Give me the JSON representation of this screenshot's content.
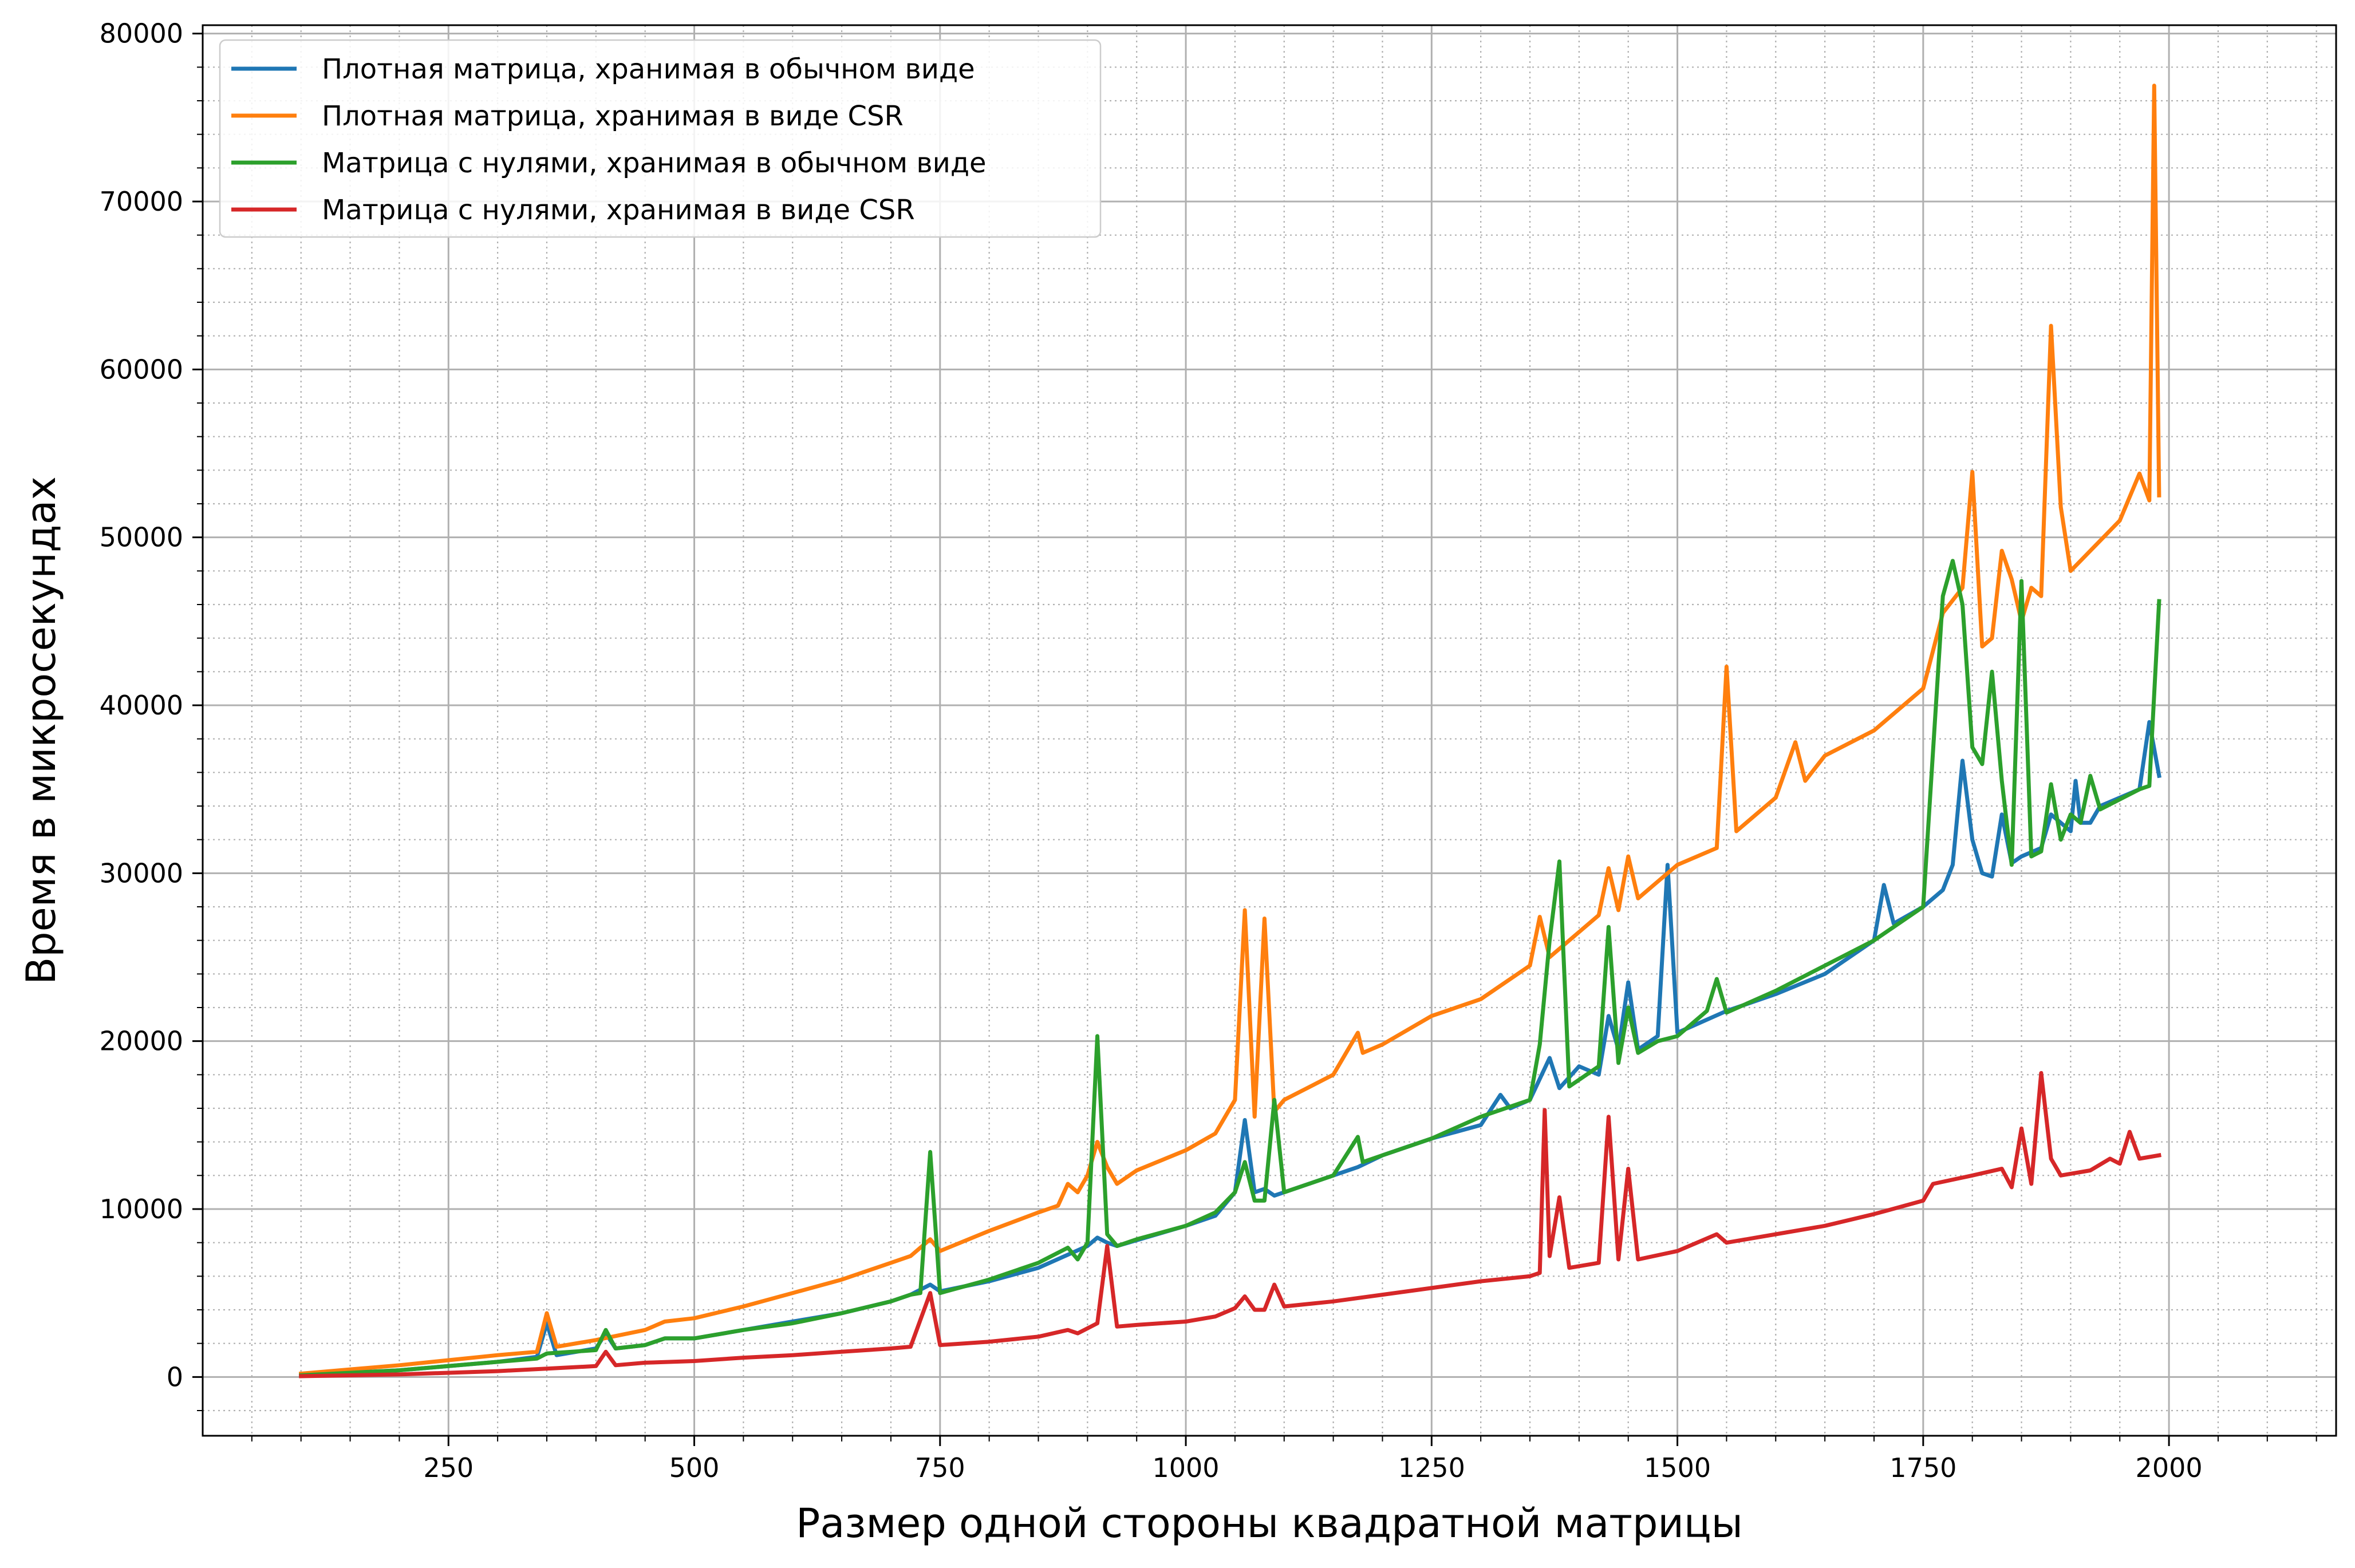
{
  "chart_data": {
    "type": "line",
    "title": "",
    "xlabel": "Размер одной стороны квадратной матрицы",
    "ylabel": "Время в микросекундах",
    "xlim": [
      0,
      2170
    ],
    "ylim": [
      -3500,
      80500
    ],
    "xticks": [
      250,
      500,
      750,
      1000,
      1250,
      1500,
      1750,
      2000
    ],
    "yticks": [
      0,
      10000,
      20000,
      30000,
      40000,
      50000,
      60000,
      70000,
      80000
    ],
    "grid": {
      "major": true,
      "minor": true
    },
    "legend_position": "top-left",
    "series": [
      {
        "name": "Плотная матрица, хранимая в обычном виде",
        "color": "#1f77b4",
        "points": [
          [
            100,
            100
          ],
          [
            200,
            400
          ],
          [
            300,
            900
          ],
          [
            340,
            1200
          ],
          [
            350,
            3200
          ],
          [
            360,
            1300
          ],
          [
            400,
            1700
          ],
          [
            410,
            2600
          ],
          [
            420,
            1700
          ],
          [
            450,
            1900
          ],
          [
            470,
            2300
          ],
          [
            500,
            2300
          ],
          [
            550,
            2800
          ],
          [
            600,
            3300
          ],
          [
            650,
            3800
          ],
          [
            700,
            4500
          ],
          [
            720,
            4900
          ],
          [
            740,
            5500
          ],
          [
            750,
            5100
          ],
          [
            800,
            5700
          ],
          [
            850,
            6500
          ],
          [
            900,
            7800
          ],
          [
            910,
            8300
          ],
          [
            920,
            8000
          ],
          [
            930,
            7800
          ],
          [
            1000,
            9000
          ],
          [
            1030,
            9600
          ],
          [
            1050,
            11000
          ],
          [
            1060,
            15300
          ],
          [
            1070,
            11000
          ],
          [
            1080,
            11200
          ],
          [
            1090,
            10800
          ],
          [
            1100,
            11000
          ],
          [
            1150,
            12000
          ],
          [
            1175,
            12500
          ],
          [
            1200,
            13200
          ],
          [
            1250,
            14200
          ],
          [
            1300,
            15000
          ],
          [
            1320,
            16800
          ],
          [
            1330,
            16000
          ],
          [
            1350,
            16500
          ],
          [
            1370,
            19000
          ],
          [
            1380,
            17200
          ],
          [
            1400,
            18500
          ],
          [
            1420,
            18000
          ],
          [
            1430,
            21500
          ],
          [
            1440,
            19500
          ],
          [
            1450,
            23500
          ],
          [
            1460,
            19500
          ],
          [
            1480,
            20300
          ],
          [
            1490,
            30500
          ],
          [
            1500,
            20500
          ],
          [
            1550,
            21800
          ],
          [
            1600,
            22800
          ],
          [
            1650,
            24000
          ],
          [
            1700,
            26000
          ],
          [
            1710,
            29300
          ],
          [
            1720,
            27000
          ],
          [
            1750,
            28000
          ],
          [
            1770,
            29000
          ],
          [
            1780,
            30500
          ],
          [
            1790,
            36700
          ],
          [
            1800,
            32000
          ],
          [
            1810,
            30000
          ],
          [
            1820,
            29800
          ],
          [
            1830,
            33500
          ],
          [
            1840,
            30600
          ],
          [
            1850,
            31000
          ],
          [
            1870,
            31500
          ],
          [
            1880,
            33500
          ],
          [
            1900,
            32500
          ],
          [
            1905,
            35500
          ],
          [
            1910,
            33000
          ],
          [
            1920,
            33000
          ],
          [
            1930,
            34000
          ],
          [
            1970,
            35000
          ],
          [
            1980,
            39000
          ],
          [
            1990,
            35800
          ]
        ]
      },
      {
        "name": "Плотная матрица, хранимая в виде CSR",
        "color": "#ff7f0e",
        "points": [
          [
            100,
            200
          ],
          [
            200,
            700
          ],
          [
            300,
            1300
          ],
          [
            340,
            1500
          ],
          [
            350,
            3800
          ],
          [
            360,
            1800
          ],
          [
            400,
            2200
          ],
          [
            450,
            2800
          ],
          [
            470,
            3300
          ],
          [
            500,
            3500
          ],
          [
            550,
            4200
          ],
          [
            600,
            5000
          ],
          [
            650,
            5800
          ],
          [
            700,
            6800
          ],
          [
            720,
            7200
          ],
          [
            740,
            8200
          ],
          [
            750,
            7500
          ],
          [
            800,
            8700
          ],
          [
            850,
            9800
          ],
          [
            870,
            10200
          ],
          [
            880,
            11500
          ],
          [
            890,
            11000
          ],
          [
            900,
            12000
          ],
          [
            910,
            14000
          ],
          [
            920,
            12500
          ],
          [
            930,
            11500
          ],
          [
            950,
            12300
          ],
          [
            1000,
            13500
          ],
          [
            1030,
            14500
          ],
          [
            1050,
            16500
          ],
          [
            1060,
            27800
          ],
          [
            1070,
            15500
          ],
          [
            1080,
            27300
          ],
          [
            1090,
            15800
          ],
          [
            1100,
            16500
          ],
          [
            1150,
            18000
          ],
          [
            1175,
            20500
          ],
          [
            1180,
            19300
          ],
          [
            1200,
            19800
          ],
          [
            1250,
            21500
          ],
          [
            1300,
            22500
          ],
          [
            1350,
            24500
          ],
          [
            1360,
            27400
          ],
          [
            1370,
            25000
          ],
          [
            1400,
            26500
          ],
          [
            1420,
            27500
          ],
          [
            1430,
            30300
          ],
          [
            1440,
            27800
          ],
          [
            1450,
            31000
          ],
          [
            1460,
            28500
          ],
          [
            1480,
            29500
          ],
          [
            1500,
            30500
          ],
          [
            1540,
            31500
          ],
          [
            1550,
            42300
          ],
          [
            1560,
            32500
          ],
          [
            1600,
            34500
          ],
          [
            1620,
            37800
          ],
          [
            1630,
            35500
          ],
          [
            1650,
            37000
          ],
          [
            1700,
            38500
          ],
          [
            1750,
            41000
          ],
          [
            1770,
            45500
          ],
          [
            1790,
            47000
          ],
          [
            1800,
            53900
          ],
          [
            1810,
            43500
          ],
          [
            1820,
            44000
          ],
          [
            1830,
            49200
          ],
          [
            1840,
            47500
          ],
          [
            1850,
            45000
          ],
          [
            1860,
            47000
          ],
          [
            1870,
            46500
          ],
          [
            1880,
            62600
          ],
          [
            1890,
            51800
          ],
          [
            1900,
            48000
          ],
          [
            1950,
            51000
          ],
          [
            1970,
            53800
          ],
          [
            1980,
            52200
          ],
          [
            1985,
            76900
          ],
          [
            1990,
            52500
          ]
        ]
      },
      {
        "name": "Матрица с нулями, хранимая в обычном виде",
        "color": "#2ca02c",
        "points": [
          [
            100,
            100
          ],
          [
            200,
            400
          ],
          [
            300,
            900
          ],
          [
            340,
            1100
          ],
          [
            350,
            1400
          ],
          [
            400,
            1600
          ],
          [
            410,
            2800
          ],
          [
            420,
            1700
          ],
          [
            450,
            1900
          ],
          [
            470,
            2300
          ],
          [
            500,
            2300
          ],
          [
            550,
            2800
          ],
          [
            600,
            3200
          ],
          [
            650,
            3800
          ],
          [
            700,
            4500
          ],
          [
            720,
            4900
          ],
          [
            730,
            5000
          ],
          [
            740,
            13400
          ],
          [
            750,
            5000
          ],
          [
            800,
            5800
          ],
          [
            850,
            6800
          ],
          [
            880,
            7700
          ],
          [
            890,
            7000
          ],
          [
            900,
            8000
          ],
          [
            910,
            20300
          ],
          [
            920,
            8500
          ],
          [
            930,
            7800
          ],
          [
            950,
            8200
          ],
          [
            1000,
            9000
          ],
          [
            1030,
            9800
          ],
          [
            1050,
            11000
          ],
          [
            1060,
            12800
          ],
          [
            1070,
            10500
          ],
          [
            1080,
            10500
          ],
          [
            1090,
            16500
          ],
          [
            1100,
            11000
          ],
          [
            1150,
            12000
          ],
          [
            1175,
            14300
          ],
          [
            1180,
            12800
          ],
          [
            1200,
            13200
          ],
          [
            1250,
            14200
          ],
          [
            1300,
            15500
          ],
          [
            1350,
            16500
          ],
          [
            1360,
            19800
          ],
          [
            1370,
            26000
          ],
          [
            1380,
            30700
          ],
          [
            1390,
            17300
          ],
          [
            1420,
            18500
          ],
          [
            1430,
            26800
          ],
          [
            1440,
            18700
          ],
          [
            1450,
            22000
          ],
          [
            1460,
            19300
          ],
          [
            1480,
            20000
          ],
          [
            1500,
            20300
          ],
          [
            1530,
            21800
          ],
          [
            1540,
            23700
          ],
          [
            1550,
            21700
          ],
          [
            1600,
            23000
          ],
          [
            1650,
            24500
          ],
          [
            1700,
            26000
          ],
          [
            1750,
            28000
          ],
          [
            1770,
            46500
          ],
          [
            1780,
            48600
          ],
          [
            1790,
            46000
          ],
          [
            1800,
            37500
          ],
          [
            1810,
            36500
          ],
          [
            1820,
            42000
          ],
          [
            1830,
            35500
          ],
          [
            1840,
            30500
          ],
          [
            1850,
            47400
          ],
          [
            1860,
            31000
          ],
          [
            1870,
            31300
          ],
          [
            1880,
            35300
          ],
          [
            1890,
            32000
          ],
          [
            1900,
            33500
          ],
          [
            1910,
            33000
          ],
          [
            1920,
            35800
          ],
          [
            1930,
            33800
          ],
          [
            1970,
            35000
          ],
          [
            1980,
            35200
          ],
          [
            1990,
            46200
          ]
        ]
      },
      {
        "name": "Матрица с нулями, хранимая в виде CSR",
        "color": "#d62728",
        "points": [
          [
            100,
            50
          ],
          [
            200,
            150
          ],
          [
            300,
            350
          ],
          [
            350,
            500
          ],
          [
            400,
            650
          ],
          [
            410,
            1500
          ],
          [
            420,
            700
          ],
          [
            450,
            850
          ],
          [
            500,
            950
          ],
          [
            550,
            1150
          ],
          [
            600,
            1300
          ],
          [
            650,
            1500
          ],
          [
            700,
            1700
          ],
          [
            720,
            1800
          ],
          [
            740,
            5000
          ],
          [
            750,
            1900
          ],
          [
            800,
            2100
          ],
          [
            850,
            2400
          ],
          [
            880,
            2800
          ],
          [
            890,
            2600
          ],
          [
            910,
            3200
          ],
          [
            920,
            7800
          ],
          [
            930,
            3000
          ],
          [
            950,
            3100
          ],
          [
            1000,
            3300
          ],
          [
            1030,
            3600
          ],
          [
            1050,
            4100
          ],
          [
            1060,
            4800
          ],
          [
            1070,
            4000
          ],
          [
            1080,
            4000
          ],
          [
            1090,
            5500
          ],
          [
            1100,
            4200
          ],
          [
            1150,
            4500
          ],
          [
            1200,
            4900
          ],
          [
            1250,
            5300
          ],
          [
            1300,
            5700
          ],
          [
            1350,
            6000
          ],
          [
            1360,
            6200
          ],
          [
            1365,
            15900
          ],
          [
            1370,
            7200
          ],
          [
            1380,
            10700
          ],
          [
            1390,
            6500
          ],
          [
            1420,
            6800
          ],
          [
            1430,
            15500
          ],
          [
            1440,
            7000
          ],
          [
            1450,
            12400
          ],
          [
            1460,
            7000
          ],
          [
            1500,
            7500
          ],
          [
            1540,
            8500
          ],
          [
            1550,
            8000
          ],
          [
            1600,
            8500
          ],
          [
            1650,
            9000
          ],
          [
            1700,
            9700
          ],
          [
            1750,
            10500
          ],
          [
            1760,
            11500
          ],
          [
            1800,
            12000
          ],
          [
            1830,
            12400
          ],
          [
            1840,
            11300
          ],
          [
            1850,
            14800
          ],
          [
            1860,
            11500
          ],
          [
            1870,
            18100
          ],
          [
            1880,
            13000
          ],
          [
            1890,
            12000
          ],
          [
            1920,
            12300
          ],
          [
            1940,
            13000
          ],
          [
            1950,
            12700
          ],
          [
            1960,
            14600
          ],
          [
            1970,
            13000
          ],
          [
            1990,
            13200
          ]
        ]
      }
    ]
  }
}
